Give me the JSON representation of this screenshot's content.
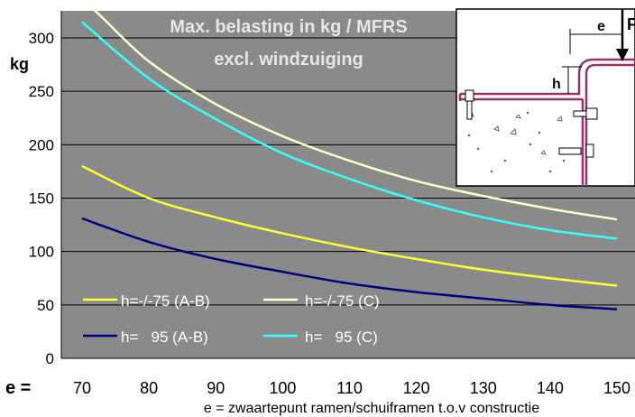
{
  "chart_data": {
    "type": "line",
    "title": "Max. belasting in kg / MFRS",
    "subtitle": "excl. windzuiging",
    "ylabel": "kg",
    "xlabel": "e = zwaartepunt ramen/schuiframen t.o.v constructie",
    "x_prefix": "e =",
    "xlim": [
      70,
      150
    ],
    "ylim": [
      0,
      300
    ],
    "x_ticks": [
      70,
      80,
      90,
      100,
      110,
      120,
      130,
      140,
      150
    ],
    "y_ticks": [
      0,
      50,
      100,
      150,
      200,
      250,
      300
    ],
    "grid": true,
    "legend_position": "bottom-left",
    "background": "#8a8a8a",
    "series": [
      {
        "name": "h=-/-75 (A-B)",
        "color": "#ffff33",
        "x": [
          70,
          80,
          90,
          100,
          110,
          120,
          130,
          140,
          150
        ],
        "values": [
          180,
          150,
          132,
          117,
          104,
          93,
          83,
          75,
          68
        ]
      },
      {
        "name": "h=-/-75 (C)",
        "color": "#ffffcc",
        "x": [
          70,
          72,
          80,
          90,
          100,
          110,
          120,
          130,
          140,
          150
        ],
        "values": [
          330,
          325,
          278,
          238,
          208,
          185,
          166,
          152,
          140,
          130
        ]
      },
      {
        "name": "h=   95 (A-B)",
        "color": "#000080",
        "x": [
          70,
          80,
          90,
          100,
          110,
          120,
          130,
          140,
          150
        ],
        "values": [
          131,
          109,
          93,
          81,
          70,
          62,
          56,
          50,
          46
        ]
      },
      {
        "name": "h=   95 (C)",
        "color": "#33ffff",
        "x": [
          70,
          80,
          90,
          100,
          110,
          120,
          130,
          140,
          150
        ],
        "values": [
          315,
          262,
          224,
          192,
          168,
          148,
          132,
          120,
          112
        ]
      }
    ]
  },
  "inset": {
    "dimension_e": "e",
    "dimension_h": "h",
    "force_label": "F"
  }
}
